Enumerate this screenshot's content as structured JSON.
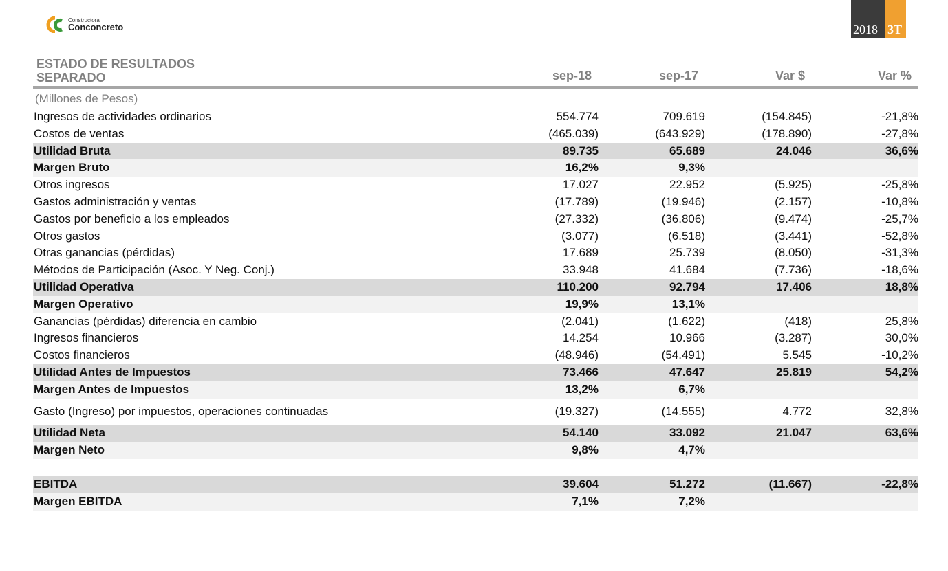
{
  "header": {
    "logo_small": "Constructora",
    "logo_name": "Conconcreto",
    "year": "2018",
    "period": "3T"
  },
  "table": {
    "title_lines": [
      "ESTADO DE RESULTADOS",
      "SEPARADO"
    ],
    "columns": [
      "sep-18",
      "sep-17",
      "Var $",
      "Var %"
    ],
    "unit": "(Millones de Pesos)",
    "sections": [
      {
        "rows": [
          {
            "kind": "item",
            "label": "Ingresos de actividades ordinarios",
            "cells": [
              "554.774",
              "709.619",
              "(154.845)",
              "-21,8%"
            ]
          },
          {
            "kind": "item",
            "label": "Costos de ventas",
            "cells": [
              "(465.039)",
              "(643.929)",
              "(178.890)",
              "-27,8%"
            ]
          },
          {
            "kind": "total",
            "label": "Utilidad Bruta",
            "cells": [
              "89.735",
              "65.689",
              "24.046",
              "36,6%"
            ]
          },
          {
            "kind": "margin",
            "label": "Margen Bruto",
            "cells": [
              "16,2%",
              "9,3%",
              null,
              null
            ]
          },
          {
            "kind": "item",
            "label": "Otros ingresos",
            "cells": [
              "17.027",
              "22.952",
              "(5.925)",
              "-25,8%"
            ]
          },
          {
            "kind": "item",
            "label": "Gastos administración y ventas",
            "cells": [
              "(17.789)",
              "(19.946)",
              "(2.157)",
              "-10,8%"
            ]
          },
          {
            "kind": "item",
            "label": "Gastos por beneficio a los empleados",
            "cells": [
              "(27.332)",
              "(36.806)",
              "(9.474)",
              "-25,7%"
            ]
          },
          {
            "kind": "item",
            "label": "Otros gastos",
            "cells": [
              "(3.077)",
              "(6.518)",
              "(3.441)",
              "-52,8%"
            ]
          },
          {
            "kind": "item",
            "label": "Otras ganancias (pérdidas)",
            "cells": [
              "17.689",
              "25.739",
              "(8.050)",
              "-31,3%"
            ]
          },
          {
            "kind": "item",
            "label": "Métodos de Participación (Asoc. Y Neg. Conj.)",
            "cells": [
              "33.948",
              "41.684",
              "(7.736)",
              "-18,6%"
            ]
          },
          {
            "kind": "total",
            "label": "Utilidad Operativa",
            "cells": [
              "110.200",
              "92.794",
              "17.406",
              "18,8%"
            ]
          },
          {
            "kind": "margin",
            "label": "Margen Operativo",
            "cells": [
              "19,9%",
              "13,1%",
              null,
              null
            ]
          },
          {
            "kind": "item",
            "label": "Ganancias (pérdidas) diferencia en cambio",
            "cells": [
              "(2.041)",
              "(1.622)",
              "(418)",
              "25,8%"
            ]
          },
          {
            "kind": "item",
            "label": "Ingresos financieros",
            "cells": [
              "14.254",
              "10.966",
              "(3.287)",
              "30,0%"
            ]
          },
          {
            "kind": "item",
            "label": "Costos financieros",
            "cells": [
              "(48.946)",
              "(54.491)",
              "5.545",
              "-10,2%"
            ]
          },
          {
            "kind": "total",
            "label": "Utilidad Antes de Impuestos",
            "cells": [
              "73.466",
              "47.647",
              "25.819",
              "54,2%"
            ]
          },
          {
            "kind": "margin",
            "label": "Margen Antes de Impuestos",
            "cells": [
              "13,2%",
              "6,7%",
              null,
              null
            ]
          }
        ]
      },
      {
        "rows": [
          {
            "kind": "item",
            "label": "Gasto (Ingreso) por impuestos, operaciones continuadas",
            "cells": [
              "(19.327)",
              "(14.555)",
              "4.772",
              "32,8%"
            ]
          }
        ]
      },
      {
        "rows": [
          {
            "kind": "total",
            "label": "Utilidad Neta",
            "cells": [
              "54.140",
              "33.092",
              "21.047",
              "63,6%"
            ]
          },
          {
            "kind": "margin",
            "label": "Margen Neto",
            "cells": [
              "9,8%",
              "4,7%",
              null,
              null
            ]
          }
        ]
      },
      {
        "rows": [
          {
            "kind": "total",
            "label": "EBITDA",
            "cells": [
              "39.604",
              "51.272",
              "(11.667)",
              "-22,8%"
            ]
          },
          {
            "kind": "margin",
            "label": "Margen EBITDA",
            "cells": [
              "7,1%",
              "7,2%",
              null,
              null
            ]
          }
        ]
      }
    ]
  }
}
